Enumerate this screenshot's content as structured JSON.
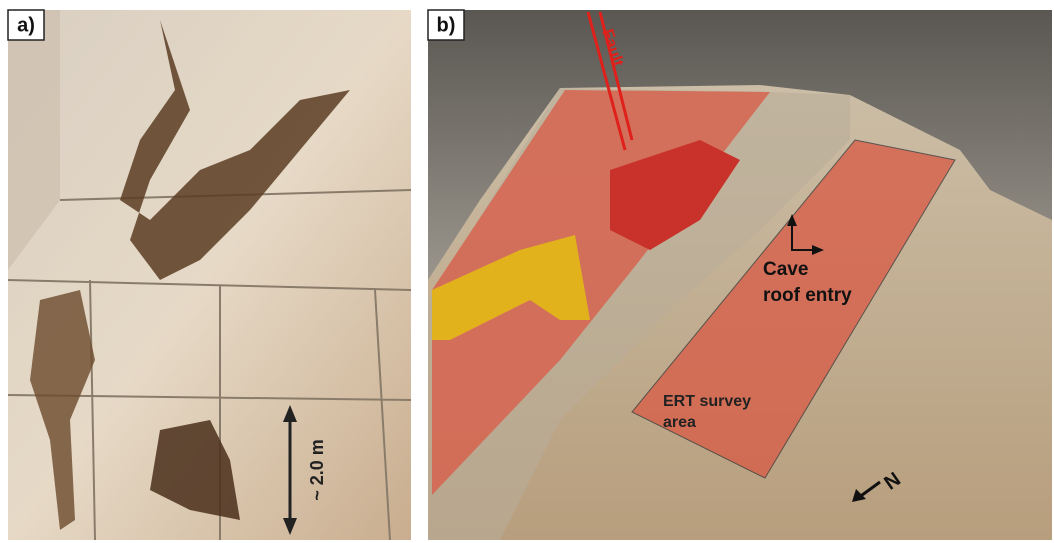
{
  "panels": [
    {
      "label": "a)",
      "scale_label": "~ 2.0 m"
    },
    {
      "label": "b)",
      "fault_label": "Fault",
      "cave_label": [
        "Cave",
        "roof entry"
      ],
      "survey_label": [
        "ERT survey",
        "area"
      ],
      "north_label": "N"
    }
  ]
}
